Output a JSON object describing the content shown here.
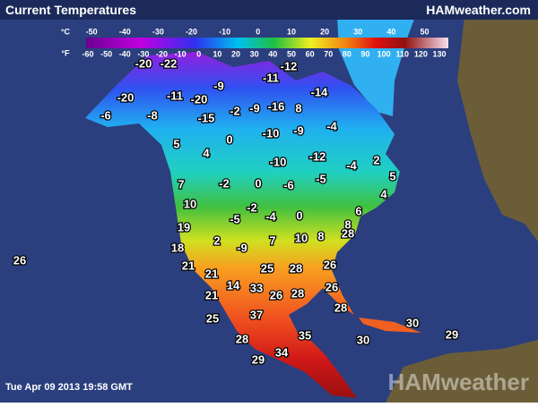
{
  "header": {
    "title": "Current Temperatures",
    "brand": "HAMweather.com"
  },
  "scale": {
    "celsius_unit": "°C",
    "fahrenheit_unit": "°F",
    "celsius_ticks": [
      -50,
      -40,
      -30,
      -20,
      -10,
      0,
      10,
      20,
      30,
      40,
      50
    ],
    "fahrenheit_ticks": [
      -60,
      -50,
      -40,
      -30,
      -20,
      -10,
      0,
      10,
      20,
      30,
      40,
      50,
      60,
      70,
      80,
      90,
      100,
      110,
      120,
      130
    ]
  },
  "temperatures": [
    -20,
    -22,
    -12,
    -11,
    -9,
    -20,
    -11,
    -20,
    -14,
    -6,
    -8,
    -15,
    -2,
    -9,
    -16,
    8,
    -4,
    -10,
    -9,
    0,
    5,
    4,
    -12,
    -4,
    2,
    5,
    -10,
    -2,
    0,
    -6,
    -5,
    4,
    7,
    10,
    -2,
    -5,
    -4,
    0,
    6,
    19,
    8,
    28,
    10,
    8,
    2,
    -9,
    7,
    18,
    26,
    21,
    25,
    28,
    26,
    21,
    14,
    33,
    26,
    28,
    26,
    21,
    28,
    37,
    25,
    30,
    35,
    28,
    30,
    29,
    34,
    29
  ],
  "timestamp": "Tue Apr 09 2013 19:58 GMT",
  "watermark": "HAMweather"
}
